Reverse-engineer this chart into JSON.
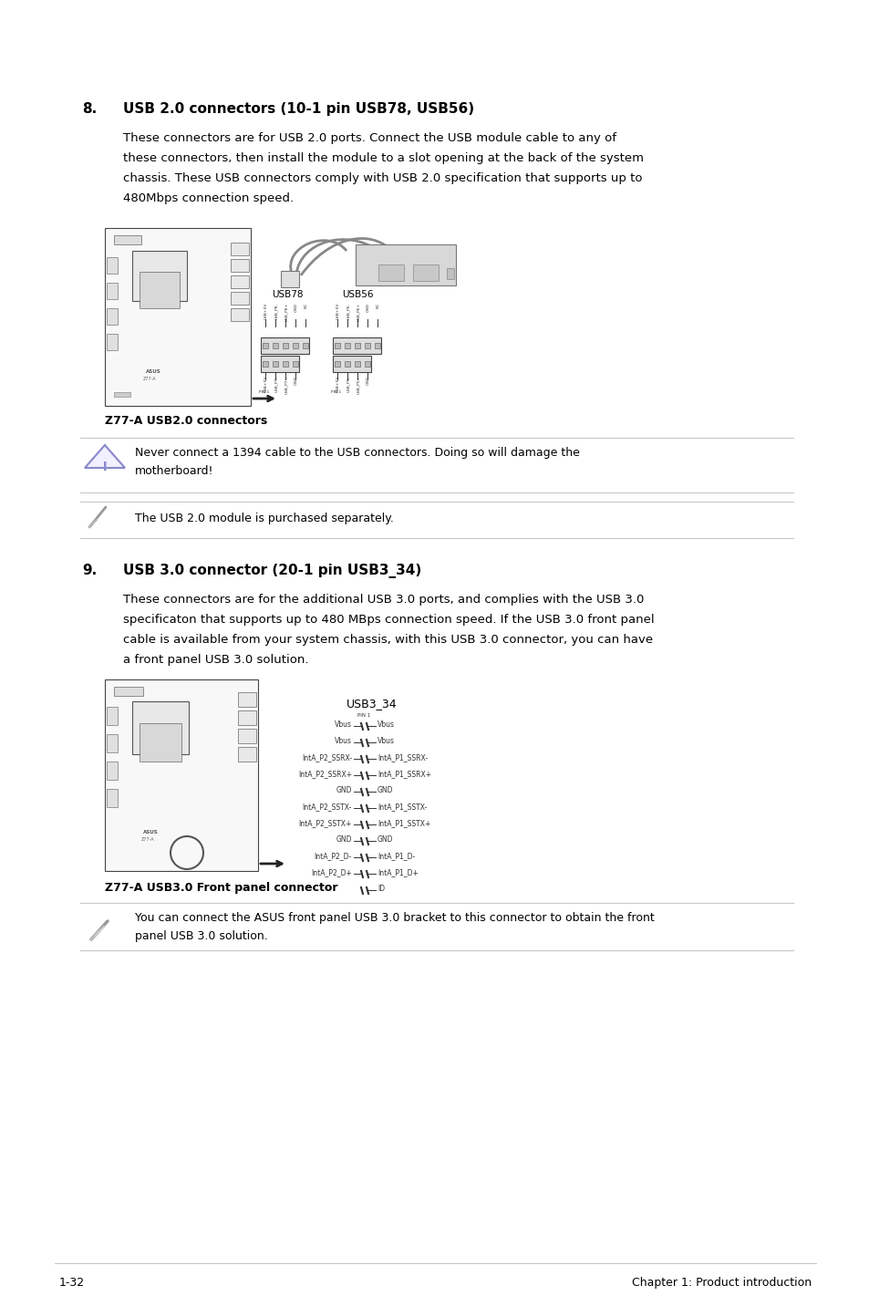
{
  "bg_color": "#ffffff",
  "text_color": "#000000",
  "section8_num": "8.",
  "section8_title": "USB 2.0 connectors (10-1 pin USB78, USB56)",
  "section8_body1": "These connectors are for USB 2.0 ports. Connect the USB module cable to any of",
  "section8_body2": "these connectors, then install the module to a slot opening at the back of the system",
  "section8_body3": "chassis. These USB connectors comply with USB 2.0 specification that supports up to",
  "section8_body4": "480Mbps connection speed.",
  "section8_diagram_label": "Z77-A USB2.0 connectors",
  "warning_text1": "Never connect a 1394 cable to the USB connectors. Doing so will damage the",
  "warning_text2": "motherboard!",
  "note_text": "The USB 2.0 module is purchased separately.",
  "section9_num": "9.",
  "section9_title": "USB 3.0 connector (20-1 pin USB3_34)",
  "section9_body1": "These connectors are for the additional USB 3.0 ports, and complies with the USB 3.0",
  "section9_body2": "specificaton that supports up to 480 MBps connection speed. If the USB 3.0 front panel",
  "section9_body3": "cable is available from your system chassis, with this USB 3.0 connector, you can have",
  "section9_body4": "a front panel USB 3.0 solution.",
  "section9_diagram_label": "Z77-A USB3.0 Front panel connector",
  "usb3_note1": "You can connect the ASUS front panel USB 3.0 bracket to this connector to obtain the front",
  "usb3_note2": "panel USB 3.0 solution.",
  "footer_left": "1-32",
  "footer_right": "Chapter 1: Product introduction",
  "line_color": "#c8c8c8",
  "warn_blue": "#8888cc",
  "gray_icon": "#aaaaaa"
}
